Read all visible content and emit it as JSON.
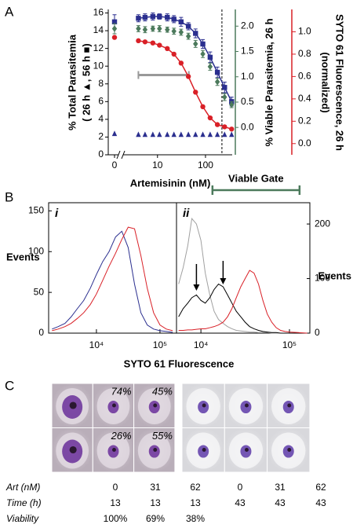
{
  "chart_data": [
    {
      "type": "line",
      "panel": "A",
      "x_label": "Artemisinin (nM)",
      "y_label": [
        "% Total Parasitemia",
        "( 26 h ▲, 56 h ■)"
      ],
      "y2_label": "% Viable Parasitemia, 26 h",
      "y3_label": [
        "SYTO 61 Fluorescence, 26 h",
        "(normalized)"
      ],
      "log_x": true,
      "control_label": "0",
      "x": [
        4,
        5.5,
        8,
        11,
        16,
        22,
        31,
        44,
        62,
        88,
        125,
        177,
        250,
        350
      ],
      "xlim": [
        2,
        360
      ],
      "xticks": [
        10,
        100
      ],
      "ylim": [
        0,
        16.4
      ],
      "yticks": [
        0,
        2,
        4,
        6,
        8,
        10,
        12,
        14,
        16
      ],
      "y2lim": [
        -0.54,
        2.33
      ],
      "y2ticks": [
        {
          "value": 0,
          "label": "0.0"
        },
        0.5,
        {
          "value": 1,
          "label": "1.0"
        },
        1.5,
        {
          "value": 2,
          "label": "2.0"
        }
      ],
      "y3lim": [
        -0.1,
        1.2
      ],
      "y3ticks": [
        {
          "value": 0,
          "label": "0.0"
        },
        0.2,
        0.4,
        0.6,
        0.8,
        {
          "value": 1,
          "label": "1.0"
        }
      ],
      "series": [
        {
          "color": "#2b2f8f",
          "marker": "triangle",
          "line": false,
          "control": 2.4,
          "values": [
            2.3,
            2.3,
            2.3,
            2.3,
            2.3,
            2.3,
            2.3,
            2.3,
            2.3,
            2.3,
            2.3,
            2.3,
            2.3,
            2.3
          ]
        },
        {
          "color": "#2b2f8f",
          "marker": "square",
          "line": true,
          "control": 15.0,
          "control_error": 0.8,
          "values": [
            15.4,
            15.5,
            15.6,
            15.6,
            15.5,
            15.3,
            15.0,
            14.5,
            13.7,
            12.5,
            11.0,
            9.3,
            7.6,
            6.0
          ],
          "errors": [
            0.4,
            0.4,
            0.4,
            0.3,
            0.4,
            0.4,
            0.5,
            0.4,
            0.5,
            0.5,
            0.6,
            0.6,
            0.6,
            0.5
          ]
        },
        {
          "color": "#4c7a5c",
          "marker": "diamond",
          "line": false,
          "axis": "y2",
          "control": 1.95,
          "control_error": 0.1,
          "values": [
            1.95,
            1.93,
            1.95,
            1.95,
            1.93,
            1.9,
            1.88,
            1.8,
            1.65,
            1.45,
            1.2,
            0.9,
            0.6,
            0.45
          ],
          "errors": [
            0.06,
            0.06,
            0.05,
            0.06,
            0.05,
            0.06,
            0.06,
            0.06,
            0.07,
            0.07,
            0.07,
            0.07,
            0.07,
            0.06
          ]
        },
        {
          "color": "#d92027",
          "marker": "circle",
          "line": true,
          "axis": "y3",
          "control": 0.95,
          "values": [
            0.92,
            0.91,
            0.9,
            0.88,
            0.85,
            0.8,
            0.72,
            0.6,
            0.46,
            0.33,
            0.23,
            0.17,
            0.15,
            0.13
          ]
        }
      ],
      "range_bar": {
        "x": [
          4,
          45
        ],
        "y": 9,
        "color": "#999999"
      },
      "vline": {
        "x": 220
      }
    },
    {
      "type": "line",
      "panel": "B",
      "subpanel": "i",
      "log_x": true,
      "x_label": "SYTO 61 Fluorescence",
      "y_label": "Events",
      "y_side": "left",
      "x": [
        2000,
        2500,
        3200,
        4000,
        5000,
        6300,
        8000,
        10000,
        12600,
        15800,
        20000,
        25100,
        31600,
        39800,
        50100,
        63100,
        79400,
        100000,
        125900,
        158500
      ],
      "xlim": [
        1770,
        182000
      ],
      "xticks": [
        {
          "value": 10000,
          "label": "10⁴"
        },
        {
          "value": 100000,
          "label": "10⁵"
        }
      ],
      "ylim": [
        0,
        160
      ],
      "yticks": [
        0,
        50,
        100,
        150
      ],
      "series": [
        {
          "color": "#2b2f8f",
          "values": [
            5,
            8,
            12,
            20,
            30,
            40,
            55,
            72,
            88,
            100,
            118,
            125,
            105,
            60,
            25,
            10,
            5,
            3,
            2,
            1
          ]
        },
        {
          "color": "#d92027",
          "values": [
            3,
            5,
            8,
            12,
            18,
            25,
            35,
            48,
            65,
            82,
            98,
            115,
            130,
            128,
            95,
            55,
            25,
            10,
            5,
            3
          ]
        }
      ]
    },
    {
      "type": "line",
      "subpanel": "ii",
      "log_x": true,
      "y_label": "Events",
      "y_side": "right",
      "x": [
        5600,
        6300,
        7100,
        7900,
        8900,
        10000,
        11200,
        12600,
        14100,
        15800,
        17800,
        20000,
        22400,
        25100,
        28200,
        31600,
        35500,
        39800,
        44700,
        50100,
        56200,
        63100,
        70800,
        79400,
        89100,
        100000,
        125900,
        158500
      ],
      "xlim": [
        5300,
        170000
      ],
      "xticks": [
        {
          "value": 10000,
          "label": "10⁴"
        },
        {
          "value": 100000,
          "label": "10⁵"
        }
      ],
      "ylim": [
        0,
        239
      ],
      "yticks": [
        0,
        100,
        200
      ],
      "series": [
        {
          "color": "#a0a0a0",
          "values": [
            90,
            120,
            160,
            210,
            200,
            170,
            110,
            70,
            40,
            25,
            18,
            12,
            8,
            5,
            4,
            3,
            2,
            2,
            1,
            1,
            1,
            0,
            0,
            0,
            0,
            0,
            0,
            0
          ]
        },
        {
          "color": "#000000",
          "values": [
            30,
            45,
            55,
            65,
            70,
            60,
            55,
            65,
            80,
            90,
            85,
            70,
            55,
            40,
            30,
            20,
            12,
            8,
            5,
            3,
            2,
            1,
            1,
            0,
            0,
            0,
            0,
            0
          ]
        },
        {
          "color": "#d92027",
          "values": [
            5,
            5,
            6,
            6,
            7,
            8,
            8,
            10,
            12,
            15,
            20,
            30,
            45,
            65,
            85,
            100,
            115,
            110,
            90,
            60,
            35,
            20,
            10,
            5,
            3,
            2,
            1,
            0
          ]
        }
      ],
      "gate": {
        "label": "Viable Gate",
        "x_start": 13500,
        "x_end": 130000,
        "color": "#4c7a5c"
      },
      "arrows_x": [
        8900,
        17800
      ]
    }
  ],
  "panel_c": {
    "panel": "C",
    "image_labels": [
      "74%",
      "45%",
      "26%",
      "55%"
    ],
    "table": {
      "row_labels": [
        "Art (nM)",
        "Time (h)",
        "Viability"
      ],
      "rows": [
        [
          0,
          31,
          62,
          0,
          31,
          62
        ],
        [
          13,
          13,
          13,
          43,
          43,
          43
        ],
        [
          "100%",
          "69%",
          "38%"
        ]
      ]
    }
  }
}
